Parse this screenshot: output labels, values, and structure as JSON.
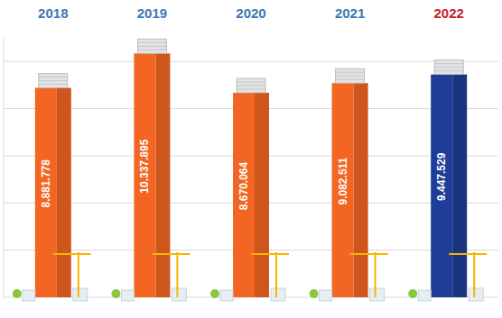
{
  "chart_data": {
    "type": "bar",
    "categories": [
      "2018",
      "2019",
      "2020",
      "2021",
      "2022"
    ],
    "values": [
      8881778,
      10337895,
      8670064,
      9082511,
      9447529
    ],
    "value_labels": [
      "8.881.778",
      "10.337.895",
      "8.670.064",
      "9.082.511",
      "9.447.529"
    ],
    "colors": [
      "#f26522",
      "#f26522",
      "#f26522",
      "#f26522",
      "#1f3d96"
    ],
    "ylim": [
      0,
      11000000
    ],
    "yticks": [
      0,
      2000000,
      4000000,
      6000000,
      8000000,
      10000000
    ],
    "grid": true,
    "data_labels": true,
    "tick_labels": "x"
  }
}
